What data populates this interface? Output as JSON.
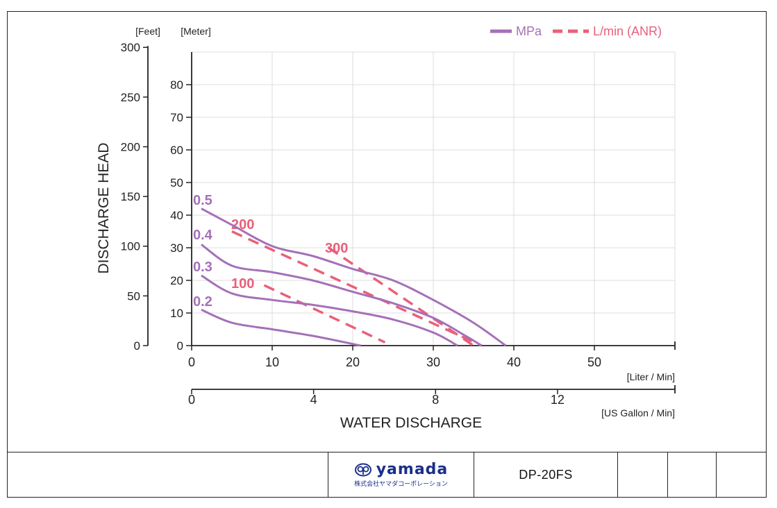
{
  "chart_data": {
    "type": "line",
    "y_unit_labels": {
      "feet": "[Feet]",
      "meter": "[Meter]"
    },
    "ylabel": "DISCHARGE HEAD",
    "xlabel": "WATER DISCHARGE",
    "x_unit_liter": "[Liter / Min]",
    "x_unit_gallon": "[US Gallon / Min]",
    "xlim": [
      0,
      60
    ],
    "ylim": [
      0,
      90
    ],
    "x_ticks_liter": [
      "0",
      "10",
      "20",
      "30",
      "40",
      "50"
    ],
    "x_ticks_gallon": [
      "0",
      "4",
      "8",
      "12"
    ],
    "y_ticks_meter": [
      "0",
      "10",
      "20",
      "30",
      "40",
      "50",
      "60",
      "70",
      "80"
    ],
    "y_ticks_feet": [
      "0",
      "50",
      "100",
      "150",
      "200",
      "250",
      "300"
    ],
    "grid": true,
    "legend": {
      "position": "top-right",
      "entries": [
        {
          "label": "MPa",
          "style": "solid",
          "color": "#a570b8"
        },
        {
          "label": "L/min (ANR)",
          "style": "dashed",
          "color": "#e8607a"
        }
      ]
    },
    "pressure_curves": [
      {
        "name": "0.5",
        "points": [
          [
            1.2,
            42
          ],
          [
            5,
            37
          ],
          [
            10,
            30.5
          ],
          [
            15,
            27.5
          ],
          [
            20,
            23.5
          ],
          [
            25,
            20
          ],
          [
            30,
            14
          ],
          [
            35,
            7
          ],
          [
            39,
            0
          ]
        ]
      },
      {
        "name": "0.4",
        "points": [
          [
            1.2,
            31
          ],
          [
            5,
            24.5
          ],
          [
            10,
            22.5
          ],
          [
            15,
            20
          ],
          [
            20,
            16.5
          ],
          [
            25,
            13
          ],
          [
            30,
            8.5
          ],
          [
            34,
            3
          ],
          [
            36,
            0
          ]
        ]
      },
      {
        "name": "0.3",
        "points": [
          [
            1.2,
            21.5
          ],
          [
            5,
            16
          ],
          [
            10,
            14
          ],
          [
            15,
            12.5
          ],
          [
            20,
            10.5
          ],
          [
            25,
            8
          ],
          [
            30,
            4
          ],
          [
            33,
            0
          ]
        ]
      },
      {
        "name": "0.2",
        "points": [
          [
            1.2,
            11
          ],
          [
            5,
            7
          ],
          [
            10,
            5
          ],
          [
            15,
            3
          ],
          [
            21,
            0
          ]
        ]
      }
    ],
    "airflow_lines": [
      {
        "name": "200",
        "points": [
          [
            5,
            35
          ],
          [
            36,
            0
          ]
        ]
      },
      {
        "name": "300",
        "points": [
          [
            17,
            30
          ],
          [
            35,
            0
          ]
        ]
      },
      {
        "name": "100",
        "points": [
          [
            9,
            18.5
          ],
          [
            24,
            1
          ]
        ]
      }
    ],
    "colors": {
      "pressure": "#a570b8",
      "airflow": "#e8607a"
    }
  },
  "footer": {
    "logo_text": "yamada",
    "logo_subtitle": "株式会社ヤマダコーポレーション",
    "model": "DP-20FS"
  }
}
